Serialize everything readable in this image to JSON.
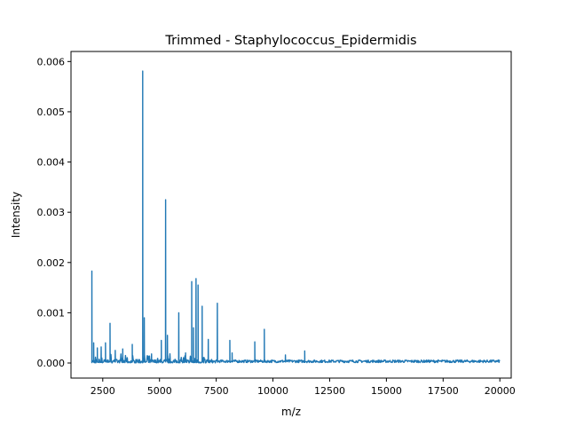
{
  "chart_data": {
    "type": "line",
    "title": "Trimmed - Staphylococcus_Epidermidis",
    "xlabel": "m/z",
    "ylabel": "Intensity",
    "xlim": [
      1100,
      20500
    ],
    "ylim": [
      -0.0003,
      0.0062
    ],
    "x_ticks": [
      2500,
      5000,
      7500,
      10000,
      12500,
      15000,
      17500,
      20000
    ],
    "x_tick_labels": [
      "2500",
      "5000",
      "7500",
      "10000",
      "12500",
      "15000",
      "17500",
      "20000"
    ],
    "y_ticks": [
      0.0,
      0.001,
      0.002,
      0.003,
      0.004,
      0.005,
      0.006
    ],
    "y_tick_labels": [
      "0.000",
      "0.001",
      "0.002",
      "0.003",
      "0.004",
      "0.005",
      "0.006"
    ],
    "grid": false,
    "line_color": "#1f77b4",
    "x_range": [
      2000,
      20000
    ],
    "baseline_noise": 4e-05,
    "peaks": [
      {
        "x": 2020,
        "y": 0.00183
      },
      {
        "x": 2100,
        "y": 0.0004
      },
      {
        "x": 2260,
        "y": 0.0003
      },
      {
        "x": 2430,
        "y": 0.00032
      },
      {
        "x": 2620,
        "y": 0.0004
      },
      {
        "x": 2820,
        "y": 0.00079
      },
      {
        "x": 3050,
        "y": 0.00025
      },
      {
        "x": 3380,
        "y": 0.00028
      },
      {
        "x": 3800,
        "y": 0.00037
      },
      {
        "x": 4260,
        "y": 0.00581
      },
      {
        "x": 4330,
        "y": 0.0009
      },
      {
        "x": 4650,
        "y": 0.00018
      },
      {
        "x": 5080,
        "y": 0.00045
      },
      {
        "x": 5270,
        "y": 0.00325
      },
      {
        "x": 5350,
        "y": 0.00055
      },
      {
        "x": 5850,
        "y": 0.001
      },
      {
        "x": 6150,
        "y": 0.0002
      },
      {
        "x": 6420,
        "y": 0.00162
      },
      {
        "x": 6500,
        "y": 0.0007
      },
      {
        "x": 6610,
        "y": 0.00168
      },
      {
        "x": 6700,
        "y": 0.00155
      },
      {
        "x": 6880,
        "y": 0.00113
      },
      {
        "x": 7150,
        "y": 0.00047
      },
      {
        "x": 7550,
        "y": 0.00119
      },
      {
        "x": 8100,
        "y": 0.00045
      },
      {
        "x": 8200,
        "y": 0.0002
      },
      {
        "x": 9200,
        "y": 0.00042
      },
      {
        "x": 9620,
        "y": 0.00067
      },
      {
        "x": 10550,
        "y": 0.00016
      },
      {
        "x": 11400,
        "y": 0.00024
      }
    ]
  }
}
